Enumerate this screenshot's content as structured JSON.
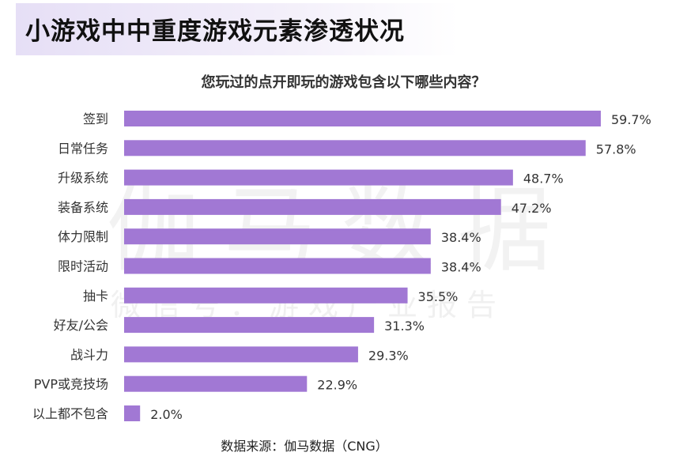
{
  "header": {
    "title": "小游戏中中重度游戏元素渗透状况"
  },
  "watermark": {
    "main": "伽马数据",
    "sub": "微信号：游戏产业报告"
  },
  "chart_data": {
    "type": "bar",
    "orientation": "horizontal",
    "title": "您玩过的点开即玩的游戏包含以下哪些内容？",
    "categories": [
      "签到",
      "日常任务",
      "升级系统",
      "装备系统",
      "体力限制",
      "限时活动",
      "抽卡",
      "好友/公会",
      "战斗力",
      "PVP或竞技场",
      "以上都不包含"
    ],
    "values": [
      59.7,
      57.8,
      48.7,
      47.2,
      38.4,
      38.4,
      35.5,
      31.3,
      29.3,
      22.9,
      2.0
    ],
    "labels": [
      "59.7%",
      "57.8%",
      "48.7%",
      "47.2%",
      "38.4%",
      "38.4%",
      "35.5%",
      "31.3%",
      "29.3%",
      "22.9%",
      "2.0%"
    ],
    "unit": "%",
    "xlim": [
      0,
      60
    ],
    "grid": false,
    "legend": "none",
    "bar_color": "#a178d4",
    "source": "数据来源：伽马数据（CNG）"
  }
}
